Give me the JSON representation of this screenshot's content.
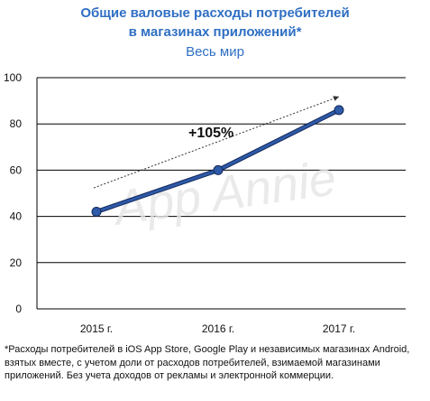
{
  "header": {
    "title_line1": "Общие валовые расходы потребителей",
    "title_line2": "в магазинах приложений*",
    "subtitle": "Весь мир"
  },
  "chart_data": {
    "type": "line",
    "categories": [
      "2015 г.",
      "2016 г.",
      "2017 г."
    ],
    "series": [
      {
        "values": [
          42,
          60,
          86
        ],
        "color": "#2e5aa8"
      }
    ],
    "ylim": [
      0,
      100
    ],
    "yticks": [
      "0",
      "20",
      "40",
      "60",
      "80",
      "100"
    ],
    "grid": true,
    "annotation": "+105%",
    "watermark": "App Annie"
  },
  "footnote": "*Расходы потребителей в iOS App Store, Google Play и независимых магазинах Android, взятых вместе, с учетом доли от расходов потребителей, взимаемой магазинами приложений. Без учета доходов от рекламы и электронной коммерции."
}
